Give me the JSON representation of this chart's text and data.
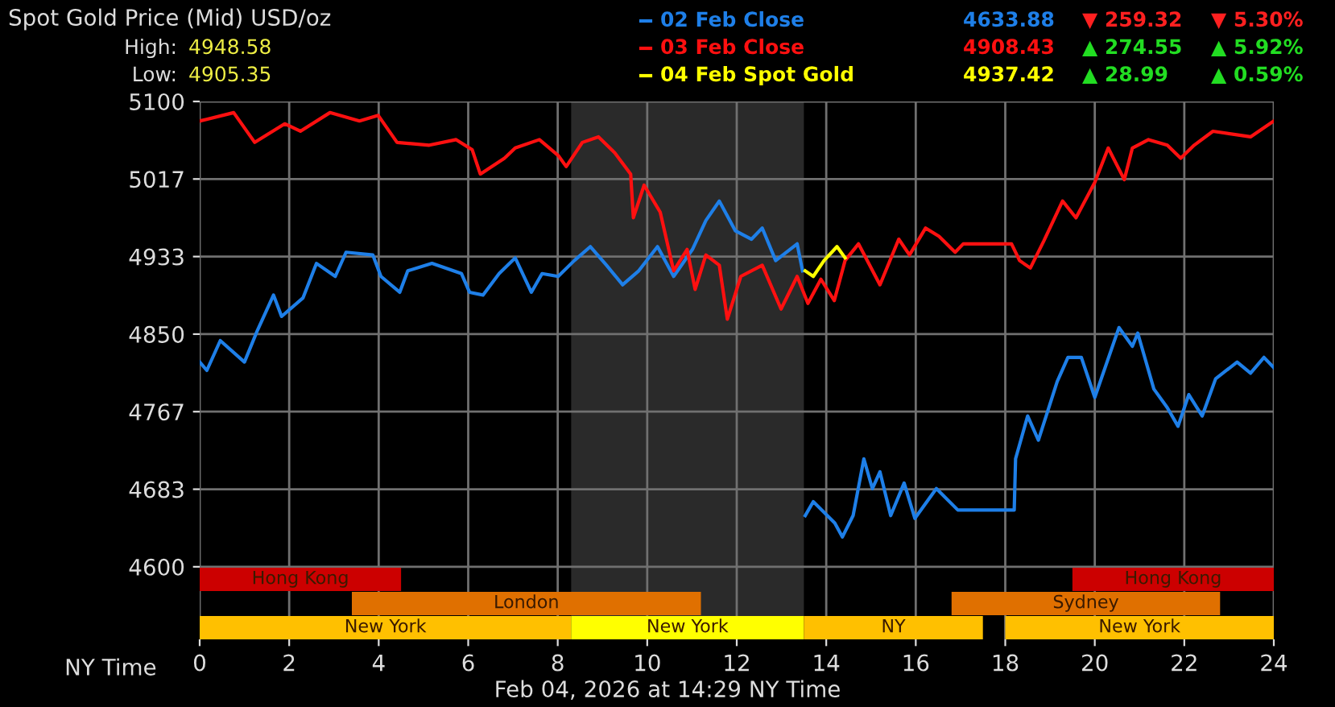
{
  "chart_data": {
    "type": "line",
    "title": "Spot Gold Price (Mid) USD/oz",
    "xlabel": "NY Time",
    "legend": "top right",
    "grid": true,
    "xlim": [
      0,
      24
    ],
    "xticks": [
      0,
      2,
      4,
      6,
      8,
      10,
      12,
      14,
      16,
      18,
      20,
      22,
      24
    ],
    "ylim": [
      4522,
      5100
    ],
    "yticks": [
      4600,
      {
        "value": 4683.33,
        "label": "4683"
      },
      {
        "value": 4766.67,
        "label": "4767"
      },
      4850,
      {
        "value": 4933.33,
        "label": "4933"
      },
      {
        "value": 5016.67,
        "label": "5017"
      },
      5100
    ],
    "bands": [
      {
        "axis": "x",
        "from": 8.3,
        "to": 13.5,
        "color": "#2a2a2a"
      },
      {
        "axis": "x",
        "from": 0,
        "to": 4.5,
        "label": "Hong Kong",
        "color": "#cc0000"
      },
      {
        "axis": "x",
        "from": 19.5,
        "to": 24,
        "label": "Hong Kong",
        "color": "#cc0000"
      },
      {
        "axis": "x",
        "from": 3.4,
        "to": 11.2,
        "label": "London",
        "color": "#e07000"
      },
      {
        "axis": "x",
        "from": 16.8,
        "to": 22.8,
        "label": "Sydney",
        "color": "#e07000"
      },
      {
        "axis": "x",
        "from": 0,
        "to": 8.3,
        "label": "New York",
        "color": "#ffc000"
      },
      {
        "axis": "x",
        "from": 8.3,
        "to": 13.5,
        "label": "New York",
        "color": "#ffff00"
      },
      {
        "axis": "x",
        "from": 13.5,
        "to": 17.5,
        "label": "NY",
        "color": "#ffc000"
      },
      {
        "axis": "x",
        "from": 18,
        "to": 24,
        "label": "New York",
        "color": "#ffc000"
      }
    ],
    "annotations": [
      "High:",
      "4948.58",
      "Low:",
      "4905.35",
      "4633.88",
      "▼ 259.32",
      "▼ 5.30%",
      "4908.43",
      "▲ 274.55",
      "▲ 5.92%",
      "4937.42",
      "▲ 28.99",
      "▲ 0.59%",
      "Feb 04, 2026 at 14:29 NY Time"
    ],
    "series": [
      {
        "name": "02 Feb Close",
        "color": "#1e7fe8",
        "x": [
          0,
          0.16,
          0.46,
          1.0,
          1.29,
          1.65,
          1.83,
          2.31,
          2.61,
          3.03,
          3.27,
          3.87,
          4.05,
          4.47,
          4.65,
          5.19,
          5.85,
          6.03,
          6.33,
          6.69,
          7.05,
          7.41,
          7.65,
          8.01,
          8.37,
          8.73,
          9.09,
          9.45,
          9.81,
          10.23,
          10.59,
          11.01,
          11.31,
          11.61,
          11.97,
          12.33,
          12.57,
          12.87,
          13.35,
          13.47,
          13.5,
          13.53,
          13.71,
          14.19,
          14.36,
          14.6,
          14.84,
          15.03,
          15.2,
          15.44,
          15.74,
          15.98,
          16.46,
          16.94,
          18.2,
          18.23,
          18.5,
          18.74,
          19.16,
          19.4,
          19.7,
          20.0,
          20.54,
          20.84,
          20.96,
          21.32,
          21.62,
          21.86,
          22.1,
          22.4,
          22.7,
          23.18,
          23.48,
          23.78,
          24
        ],
        "values": [
          4820,
          4811,
          4843,
          4820,
          4854,
          4892,
          4869,
          4889,
          4926,
          4912,
          4938,
          4935,
          4912,
          4895,
          4918,
          4926,
          4915,
          4895,
          4892,
          4915,
          4932,
          4895,
          4915,
          4912,
          4929,
          4944,
          4924,
          4903,
          4918,
          4944,
          4912,
          4941,
          4972,
          4993,
          4961,
          4952,
          4964,
          4929,
          4947,
          4918,
          null,
          4655,
          4670,
          4647,
          4632,
          4655,
          4716,
          4684,
          4702,
          4655,
          4690,
          4652,
          4684,
          4661,
          4661,
          4716,
          4762,
          4736,
          4799,
          4825,
          4825,
          4782,
          4857,
          4837,
          4851,
          4791,
          4771,
          4751,
          4785,
          4762,
          4802,
          4820,
          4808,
          4825,
          4814
        ]
      },
      {
        "name": "03 Feb Close",
        "color": "#ff1010",
        "x": [
          0,
          0.76,
          1.23,
          1.9,
          2.25,
          2.91,
          3.57,
          3.99,
          4.41,
          5.13,
          5.73,
          6.09,
          6.27,
          6.81,
          7.05,
          7.59,
          8.01,
          8.19,
          8.55,
          8.91,
          9.27,
          9.63,
          9.69,
          9.93,
          10.29,
          10.59,
          10.89,
          11.07,
          11.31,
          11.61,
          11.79,
          12.09,
          12.57,
          12.99,
          13.35,
          13.59,
          13.88,
          14.18,
          14.42,
          14.72,
          15.2,
          15.62,
          15.86,
          16.22,
          16.52,
          16.88,
          17.06,
          18.14,
          18.32,
          18.56,
          18.86,
          19.28,
          19.58,
          20.0,
          20.3,
          20.66,
          20.84,
          21.2,
          21.62,
          21.92,
          22.22,
          22.64,
          23.48,
          24.0
        ],
        "values": [
          5079,
          5088,
          5056,
          5076,
          5068,
          5088,
          5079,
          5085,
          5056,
          5053,
          5059,
          5048,
          5022,
          5039,
          5050,
          5059,
          5042,
          5030,
          5056,
          5062,
          5045,
          5022,
          4975,
          5010,
          4981,
          4918,
          4941,
          4898,
          4935,
          4924,
          4866,
          4912,
          4924,
          4877,
          4912,
          4883,
          4909,
          4886,
          4929,
          4947,
          4903,
          4952,
          4935,
          4964,
          4955,
          4938,
          4947,
          4947,
          4929,
          4921,
          4950,
          4993,
          4975,
          5013,
          5050,
          5016,
          5050,
          5059,
          5053,
          5039,
          5053,
          5068,
          5062,
          5079
        ]
      },
      {
        "name": "04 Feb Spot Gold",
        "color": "#ffff00",
        "x": [
          13.53,
          13.71,
          13.95,
          14.24,
          14.42
        ],
        "values": [
          4918,
          4912,
          4929,
          4944,
          4932
        ]
      }
    ]
  }
}
